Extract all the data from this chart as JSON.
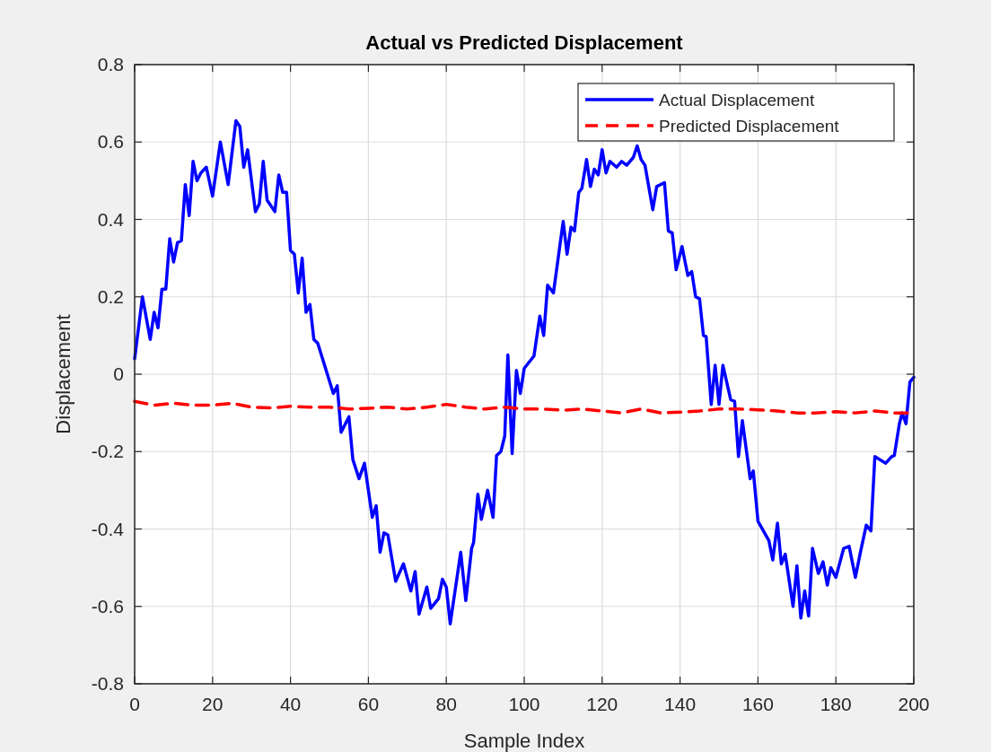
{
  "chart_data": {
    "type": "line",
    "title": "Actual vs Predicted Displacement",
    "xlabel": "Sample Index",
    "ylabel": "Displacement",
    "xlim": [
      0,
      200
    ],
    "xticks": [
      0,
      20,
      40,
      60,
      80,
      100,
      120,
      140,
      160,
      180,
      200
    ],
    "ylim": [
      -0.8,
      0.8
    ],
    "yticks": [
      -0.8,
      -0.6,
      -0.4,
      -0.2,
      0,
      0.2,
      0.4,
      0.6,
      0.8
    ],
    "grid": true,
    "legend": "top right",
    "series": [
      {
        "name": "Actual Displacement",
        "color": "#0000ff",
        "line_style": "solid",
        "x": [
          0,
          2,
          4,
          5,
          6,
          7,
          8,
          9,
          10,
          11,
          12,
          13,
          14,
          15,
          16,
          17,
          18.4,
          20,
          22,
          24,
          26,
          27,
          28,
          29,
          31,
          32,
          33,
          34,
          36,
          37,
          38,
          39,
          40,
          41,
          42,
          43,
          44,
          45,
          46,
          47,
          51,
          52,
          53,
          55,
          56,
          57.6,
          59,
          61,
          62,
          63,
          64,
          65,
          67,
          69,
          70.9,
          72,
          73,
          75,
          76,
          78,
          79,
          80,
          81,
          83.7,
          85,
          86.5,
          87,
          88.1,
          89,
          90.6,
          92,
          92.9,
          94,
          95,
          95.8,
          96.9,
          98,
          99,
          100,
          102.5,
          104,
          105,
          106,
          107.5,
          110,
          111,
          112,
          112.9,
          114,
          114.8,
          116,
          117,
          118,
          119,
          120,
          121,
          122,
          123.7,
          125,
          126.3,
          128,
          129,
          130,
          131,
          133,
          134,
          136,
          137,
          138,
          139,
          140.5,
          142,
          143,
          144,
          145,
          146,
          146.7,
          148,
          149,
          150,
          151,
          153,
          154,
          155,
          156,
          158,
          158.8,
          160,
          162.8,
          163.8,
          165,
          166,
          167,
          169,
          170,
          171,
          172,
          173,
          174,
          175.5,
          176.7,
          177.8,
          178.7,
          180,
          182,
          183.4,
          185,
          186.3,
          187.8,
          189,
          190,
          192.8,
          194.3,
          195,
          196.3,
          197,
          198,
          199,
          200
        ],
        "values": [
          0.04,
          0.2,
          0.09,
          0.16,
          0.12,
          0.22,
          0.22,
          0.35,
          0.29,
          0.34,
          0.345,
          0.49,
          0.41,
          0.55,
          0.5,
          0.52,
          0.535,
          0.46,
          0.6,
          0.49,
          0.655,
          0.64,
          0.535,
          0.58,
          0.42,
          0.44,
          0.55,
          0.45,
          0.42,
          0.515,
          0.47,
          0.47,
          0.32,
          0.31,
          0.21,
          0.3,
          0.16,
          0.18,
          0.09,
          0.08,
          -0.05,
          -0.03,
          -0.15,
          -0.11,
          -0.22,
          -0.27,
          -0.23,
          -0.37,
          -0.34,
          -0.46,
          -0.41,
          -0.415,
          -0.535,
          -0.49,
          -0.56,
          -0.51,
          -0.62,
          -0.55,
          -0.605,
          -0.58,
          -0.53,
          -0.55,
          -0.645,
          -0.46,
          -0.585,
          -0.45,
          -0.435,
          -0.31,
          -0.375,
          -0.3,
          -0.37,
          -0.21,
          -0.2,
          -0.16,
          0.05,
          -0.205,
          0.01,
          -0.05,
          0.015,
          0.047,
          0.15,
          0.1,
          0.23,
          0.21,
          0.395,
          0.31,
          0.38,
          0.37,
          0.47,
          0.48,
          0.555,
          0.485,
          0.53,
          0.515,
          0.58,
          0.52,
          0.55,
          0.535,
          0.55,
          0.54,
          0.56,
          0.59,
          0.555,
          0.54,
          0.425,
          0.485,
          0.495,
          0.37,
          0.365,
          0.27,
          0.33,
          0.255,
          0.265,
          0.2,
          0.195,
          0.1,
          0.097,
          -0.078,
          0.023,
          -0.078,
          0.023,
          -0.066,
          -0.07,
          -0.213,
          -0.12,
          -0.27,
          -0.25,
          -0.38,
          -0.43,
          -0.48,
          -0.385,
          -0.49,
          -0.465,
          -0.6,
          -0.495,
          -0.63,
          -0.56,
          -0.625,
          -0.45,
          -0.515,
          -0.485,
          -0.545,
          -0.5,
          -0.525,
          -0.45,
          -0.445,
          -0.525,
          -0.46,
          -0.39,
          -0.405,
          -0.213,
          -0.23,
          -0.213,
          -0.21,
          -0.128,
          -0.1,
          -0.128,
          -0.02,
          -0.008
        ]
      },
      {
        "name": "Predicted Displacement",
        "color": "#ff0000",
        "line_style": "dashed",
        "x": [
          0,
          5,
          10,
          15,
          20,
          25,
          30,
          35,
          40,
          45,
          50,
          55,
          60,
          65,
          70,
          75,
          80,
          85,
          90,
          95,
          100,
          105,
          110,
          115,
          120,
          125,
          130,
          135,
          140,
          145,
          150,
          155,
          160,
          165,
          170,
          175,
          180,
          185,
          190,
          195,
          200
        ],
        "values": [
          -0.07,
          -0.08,
          -0.075,
          -0.08,
          -0.08,
          -0.075,
          -0.085,
          -0.087,
          -0.083,
          -0.085,
          -0.085,
          -0.09,
          -0.088,
          -0.085,
          -0.09,
          -0.085,
          -0.078,
          -0.085,
          -0.09,
          -0.085,
          -0.09,
          -0.09,
          -0.093,
          -0.09,
          -0.095,
          -0.1,
          -0.09,
          -0.1,
          -0.098,
          -0.095,
          -0.09,
          -0.09,
          -0.092,
          -0.095,
          -0.1,
          -0.1,
          -0.097,
          -0.1,
          -0.095,
          -0.1,
          -0.1
        ]
      }
    ]
  }
}
